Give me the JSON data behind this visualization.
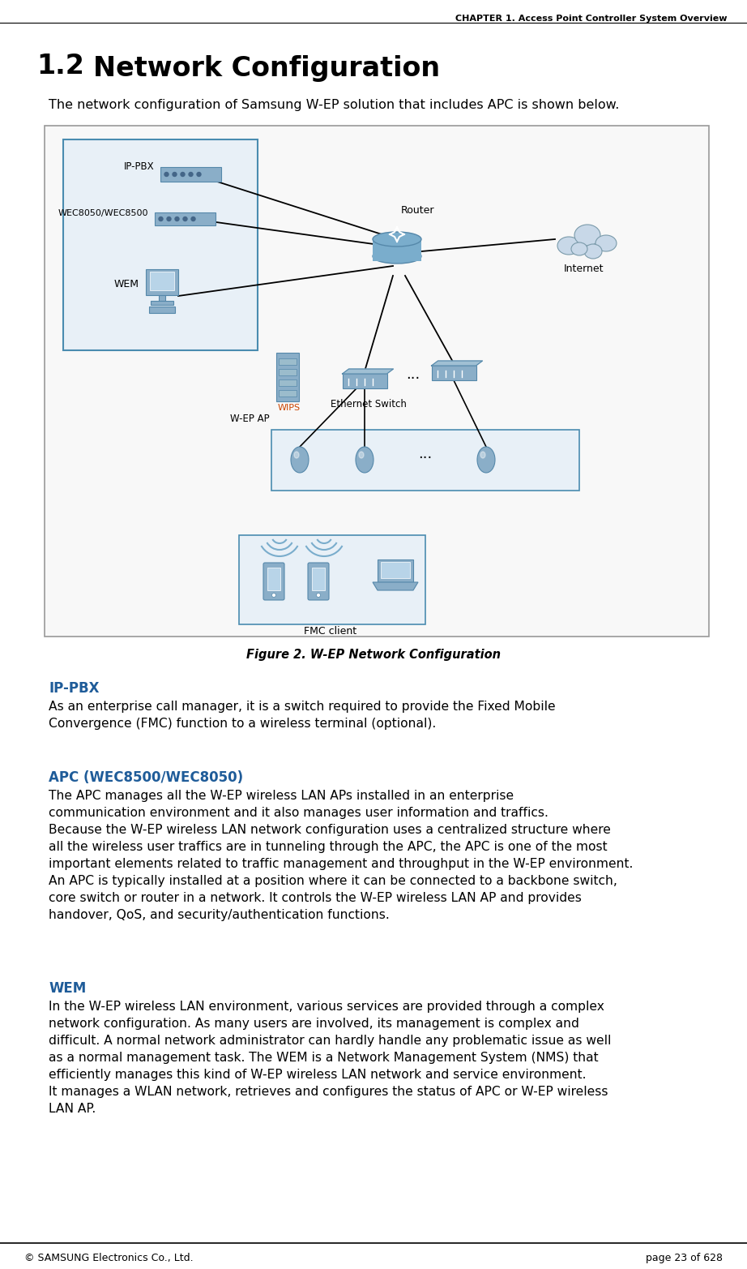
{
  "header_text": "CHAPTER 1. Access Point Controller System Overview",
  "section_title": "1.2   Network Configuration",
  "intro_text": "The network configuration of Samsung W-EP solution that includes APC is shown below.",
  "figure_caption": "Figure 2. W-EP Network Configuration",
  "heading_ippbx": "IP-PBX",
  "body_ippbx": "As an enterprise call manager, it is a switch required to provide the Fixed Mobile\nConvergence (FMC) function to a wireless terminal (optional).",
  "heading_apc": "APC (WEC8500/WEC8050)",
  "body_apc": "The APC manages all the W-EP wireless LAN APs installed in an enterprise\ncommunication environment and it also manages user information and traffics.\nBecause the W-EP wireless LAN network configuration uses a centralized structure where\nall the wireless user traffics are in tunneling through the APC, the APC is one of the most\nimportant elements related to traffic management and throughput in the W-EP environment.\nAn APC is typically installed at a position where it can be connected to a backbone switch,\ncore switch or router in a network. It controls the W-EP wireless LAN AP and provides\nhandover, QoS, and security/authentication functions.",
  "heading_wem": "WEM",
  "body_wem": "In the W-EP wireless LAN environment, various services are provided through a complex\nnetwork configuration. As many users are involved, its management is complex and\ndifficult. A normal network administrator can hardly handle any problematic issue as well\nas a normal management task. The WEM is a Network Management System (NMS) that\nefficiently manages this kind of W-EP wireless LAN network and service environment.\nIt manages a WLAN network, retrieves and configures the status of APC or W-EP wireless\nLAN AP.",
  "footer_left": "© SAMSUNG Electronics Co., Ltd.",
  "footer_right": "page 23 of 628",
  "bg_color": "#ffffff",
  "heading_color": "#1F5C99",
  "wips_color": "#CC4400",
  "icon_color": "#8aaec8",
  "icon_edge": "#5588aa",
  "cloud_color": "#c8d8e8",
  "router_color": "#7aadcc",
  "blue_box_border": "#4A8CB0",
  "blue_box_fill": "#E8F0F7",
  "diag_border": "#999999",
  "diag_fill": "#f8f8f8"
}
